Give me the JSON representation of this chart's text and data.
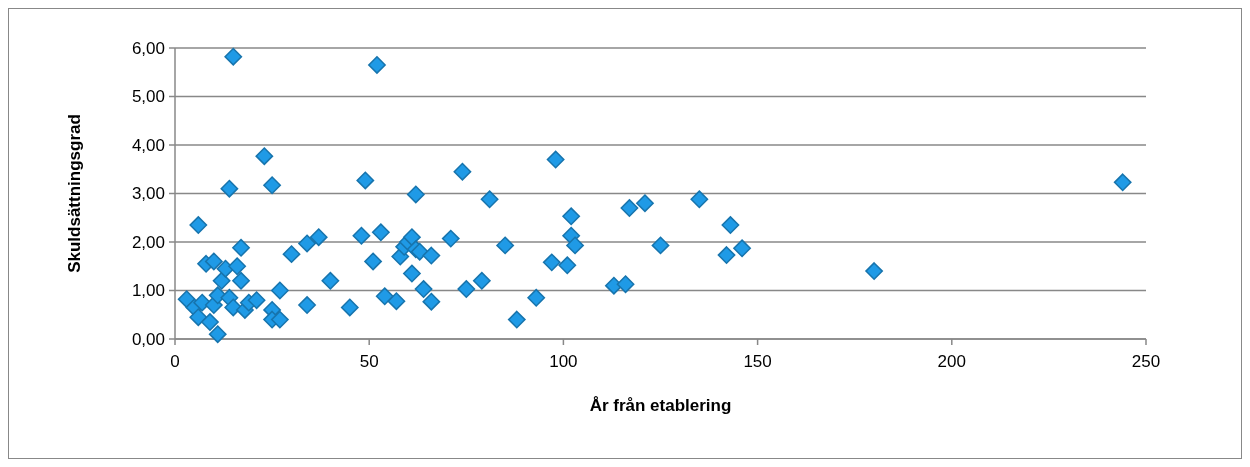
{
  "chart_data": {
    "type": "scatter",
    "xlabel": "År från etablering",
    "ylabel": "Skuldsättningsgrad",
    "xlim": [
      0,
      250
    ],
    "xticks": [
      0,
      50,
      100,
      150,
      200,
      250
    ],
    "ylim": [
      0,
      6
    ],
    "yticks": [
      {
        "value": 0,
        "label": "0,00"
      },
      {
        "value": 1,
        "label": "1,00"
      },
      {
        "value": 2,
        "label": "2,00"
      },
      {
        "value": 3,
        "label": "3,00"
      },
      {
        "value": 4,
        "label": "4,00"
      },
      {
        "value": 5,
        "label": "5,00"
      },
      {
        "value": 6,
        "label": "6,00"
      }
    ],
    "grid": "y",
    "marker": "diamond",
    "series": [
      {
        "color": "#1f9ae6",
        "x": [
          3,
          5,
          6,
          7,
          6,
          8,
          9,
          10,
          10,
          11,
          11,
          12,
          13,
          14,
          14,
          15,
          15,
          16,
          17,
          17,
          18,
          19,
          21,
          23,
          25,
          25,
          25,
          27,
          27,
          30,
          34,
          34,
          37,
          40,
          45,
          48,
          49,
          51,
          52,
          53,
          54,
          57,
          58,
          59,
          60,
          61,
          61,
          62,
          62,
          63,
          64,
          66,
          66,
          71,
          74,
          75,
          79,
          81,
          85,
          88,
          93,
          97,
          98,
          101,
          102,
          102,
          103,
          113,
          116,
          117,
          121,
          125,
          135,
          142,
          143,
          146,
          180,
          244
        ],
        "values": [
          0.82,
          0.65,
          0.45,
          0.75,
          2.35,
          1.55,
          0.35,
          0.7,
          1.6,
          0.1,
          0.9,
          1.2,
          1.45,
          0.85,
          3.1,
          5.82,
          0.65,
          1.5,
          1.2,
          1.88,
          0.6,
          0.75,
          0.8,
          3.77,
          3.17,
          0.6,
          0.4,
          0.4,
          1.0,
          1.75,
          1.97,
          0.7,
          2.1,
          1.2,
          0.65,
          2.13,
          3.27,
          1.6,
          5.65,
          2.2,
          0.88,
          0.78,
          1.7,
          1.9,
          2.0,
          1.35,
          2.1,
          1.85,
          2.98,
          1.8,
          1.03,
          0.77,
          1.72,
          2.07,
          3.45,
          1.03,
          1.2,
          2.88,
          1.93,
          0.4,
          0.85,
          1.58,
          3.7,
          1.52,
          2.13,
          2.53,
          1.93,
          1.1,
          1.13,
          2.7,
          2.8,
          1.93,
          2.88,
          1.73,
          2.35,
          1.87,
          1.4,
          3.23
        ]
      }
    ]
  }
}
